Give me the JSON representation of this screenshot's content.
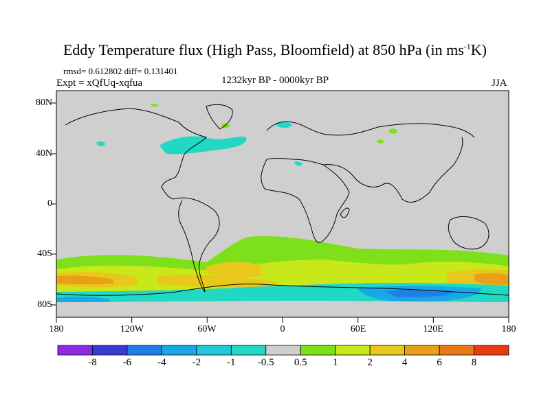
{
  "title": {
    "main": "Eddy Temperature flux (High Pass, Bloomfield) at 850 hPa (in ms",
    "sup": "-1",
    "tail": "K)"
  },
  "stats": "rmsd= 0.612802 diff= 0.131401",
  "expt": "Expt = xQfUq-xqfua",
  "period": "1232kyr BP - 0000kyr BP",
  "season": "JJA",
  "lat_labels": [
    "80N",
    "40N",
    "0",
    "40S",
    "80S"
  ],
  "lon_labels": [
    "180",
    "120W",
    "60W",
    "0",
    "60E",
    "120E",
    "180"
  ],
  "colorbar": {
    "labels": [
      "-8",
      "-6",
      "-4",
      "-2",
      "-1",
      "-0.5",
      "0.5",
      "1",
      "2",
      "4",
      "6",
      "8"
    ],
    "colors": [
      "#8a2be2",
      "#3a3ad8",
      "#1f7fe6",
      "#17a8e6",
      "#20c8d8",
      "#20d8c4",
      "#cfcfcf",
      "#7ee01a",
      "#c8e81a",
      "#e8c81a",
      "#e8a018",
      "#e87818",
      "#e83c10"
    ]
  },
  "map_colors": {
    "background": "#cfcfcf",
    "coast": "#000000"
  }
}
